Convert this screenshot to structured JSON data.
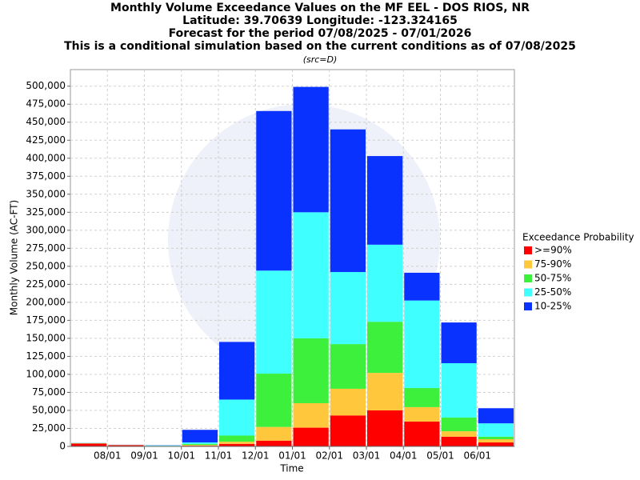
{
  "chart_data": {
    "type": "stacked_bar",
    "title": "Monthly Volume Exceedance Values on the MF EEL - DOS RIOS, NR",
    "subtitles": [
      "Latitude: 39.70639 Longitude: -123.324165",
      "Forecast for the period 07/08/2025 - 07/01/2026",
      "This is a conditional simulation based on the current conditions as of 07/08/2025"
    ],
    "source": "(src=D)",
    "x_label": "Time",
    "y_label": "Monthly Volume (AC-FT)",
    "legend_title": "Exceedance Probability",
    "legend": "right",
    "grid": true,
    "categories": [
      null,
      null,
      null,
      null,
      null,
      null,
      null,
      null,
      null,
      null,
      null,
      null
    ],
    "xticks": [
      "08/01",
      "09/01",
      "10/01",
      "11/01",
      "12/01",
      "01/01",
      "02/01",
      "03/01",
      "04/01",
      "05/01",
      "06/01"
    ],
    "ylim": [
      0,
      523000
    ],
    "yticks": [
      0,
      {
        "value": 25000,
        "label": "25,000"
      },
      {
        "value": 50000,
        "label": "50,000"
      },
      {
        "value": 75000,
        "label": "75,000"
      },
      {
        "value": 100000,
        "label": "100,000"
      },
      {
        "value": 125000,
        "label": "125,000"
      },
      {
        "value": 150000,
        "label": "150,000"
      },
      {
        "value": 175000,
        "label": "175,000"
      },
      {
        "value": 200000,
        "label": "200,000"
      },
      {
        "value": 225000,
        "label": "225,000"
      },
      {
        "value": 250000,
        "label": "250,000"
      },
      {
        "value": 275000,
        "label": "275,000"
      },
      {
        "value": 300000,
        "label": "300,000"
      },
      {
        "value": 325000,
        "label": "325,000"
      },
      {
        "value": 350000,
        "label": "350,000"
      },
      {
        "value": 375000,
        "label": "375,000"
      },
      {
        "value": 400000,
        "label": "400,000"
      },
      {
        "value": 425000,
        "label": "425,000"
      },
      {
        "value": 450000,
        "label": "450,000"
      },
      {
        "value": 475000,
        "label": "475,000"
      },
      {
        "value": 500000,
        "label": "500,000"
      }
    ],
    "series": [
      {
        "name": ">=90%",
        "color": "#ff0000",
        "values": [
          4000,
          1800,
          300,
          1000,
          3500,
          8000,
          26000,
          43000,
          50000,
          34500,
          13500,
          5500
        ]
      },
      {
        "name": "75-90%",
        "color": "#ffc83c",
        "values": [
          300,
          200,
          200,
          1000,
          3000,
          19000,
          34000,
          37000,
          52000,
          20000,
          7500,
          4500
        ]
      },
      {
        "name": "50-75%",
        "color": "#3cf03c",
        "values": [
          200,
          100,
          300,
          1500,
          8500,
          74000,
          90000,
          62000,
          71000,
          26500,
          19000,
          3500
        ]
      },
      {
        "name": "25-50%",
        "color": "#40ffff",
        "values": [
          200,
          100,
          600,
          2000,
          50000,
          143000,
          175000,
          100000,
          107000,
          121500,
          75500,
          18500
        ]
      },
      {
        "name": "10-25%",
        "color": "#0a32ff",
        "values": [
          100,
          100,
          300,
          17500,
          80000,
          221500,
          174000,
          198000,
          123000,
          38500,
          56500,
          21000
        ]
      }
    ]
  }
}
